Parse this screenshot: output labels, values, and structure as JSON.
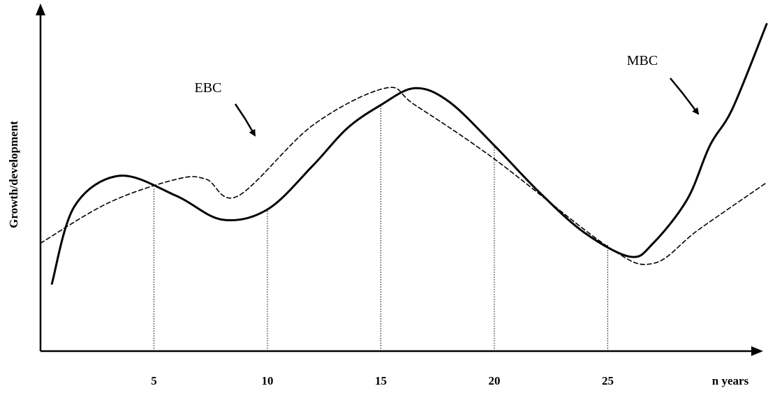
{
  "chart_data": {
    "type": "line",
    "title": "",
    "ylabel": "Growth/development",
    "xlabel": "n years",
    "x_ticks": [
      5,
      10,
      15,
      20,
      25
    ],
    "xlim": [
      0,
      32
    ],
    "ylim": [
      0,
      10
    ],
    "guide_lines_at_x": [
      5,
      10,
      15,
      20,
      25
    ],
    "grid": false,
    "series": [
      {
        "name": "EBC",
        "style": "dashed",
        "x": [
          0,
          3,
          6,
          7.3,
          8.7,
          12,
          15.2,
          16.5,
          20,
          25,
          27,
          29,
          32
        ],
        "y": [
          3.2,
          4.4,
          5.1,
          5.1,
          4.6,
          6.7,
          7.8,
          7.3,
          5.7,
          3.1,
          2.6,
          3.6,
          5.0
        ]
      },
      {
        "name": "MBC",
        "style": "solid",
        "x": [
          0.5,
          1.5,
          3.5,
          6,
          8,
          10,
          12,
          13.5,
          15,
          16.5,
          18,
          20,
          22,
          24,
          26,
          27,
          28.5,
          29.5,
          30.5,
          32
        ],
        "y": [
          2.0,
          4.3,
          5.2,
          4.6,
          3.9,
          4.2,
          5.5,
          6.6,
          7.3,
          7.8,
          7.4,
          6.1,
          4.7,
          3.5,
          2.8,
          3.2,
          4.5,
          6.1,
          7.2,
          9.7
        ]
      }
    ],
    "annotations": [
      {
        "text": "EBC",
        "points_to_series": "EBC"
      },
      {
        "text": "MBC",
        "points_to_series": "MBC"
      }
    ],
    "colors": {
      "lines": "#000000",
      "background": "#ffffff"
    }
  }
}
